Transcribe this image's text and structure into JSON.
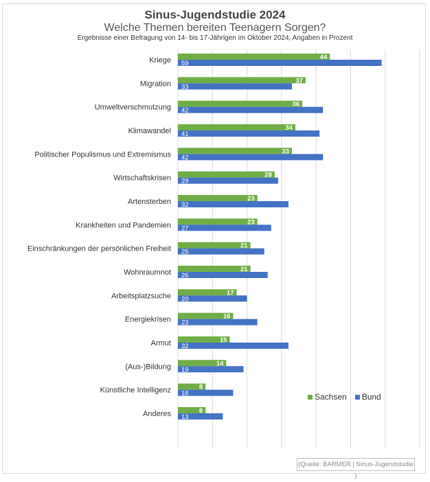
{
  "chart_data": {
    "type": "bar",
    "orientation": "horizontal",
    "title": "Sinus-Jugendstudie 2024",
    "subtitle": "Welche Themen bereiten Teenagern Sorgen?",
    "note": "Ergebnisse einer Befragung von 14- bis 17-Jährigen im Oktober 2024, Angaben in Prozent",
    "categories": [
      "Kriege",
      "Migration",
      "Umweltverschmutzung",
      "Klimawandel",
      "Politischer Populismus und Extremismus",
      "Wirtschaftskrisen",
      "Artensterben",
      "Krankheiten und Pandemien",
      "Einschränkungen der persönlichen Freiheit",
      "Wohnraumnot",
      "Arbeitsplatzsuche",
      "Energiekrisen",
      "Armut",
      "(Aus-)Bildung",
      "Künstliche Intelligenz",
      "Anderes"
    ],
    "series": [
      {
        "name": "Sachsen",
        "color": "#70ad47",
        "values": [
          44,
          37,
          36,
          34,
          33,
          28,
          23,
          23,
          21,
          21,
          17,
          16,
          15,
          14,
          8,
          8
        ]
      },
      {
        "name": "Bund",
        "color": "#4472c4",
        "values": [
          59,
          33,
          42,
          41,
          42,
          29,
          32,
          27,
          25,
          26,
          20,
          23,
          32,
          19,
          16,
          13
        ]
      }
    ],
    "xlim": [
      0,
      70
    ],
    "grid": true,
    "legend_position": "bottom-right",
    "source": "(Quelle: BARMER | Sinus-Jugendstudie )"
  }
}
